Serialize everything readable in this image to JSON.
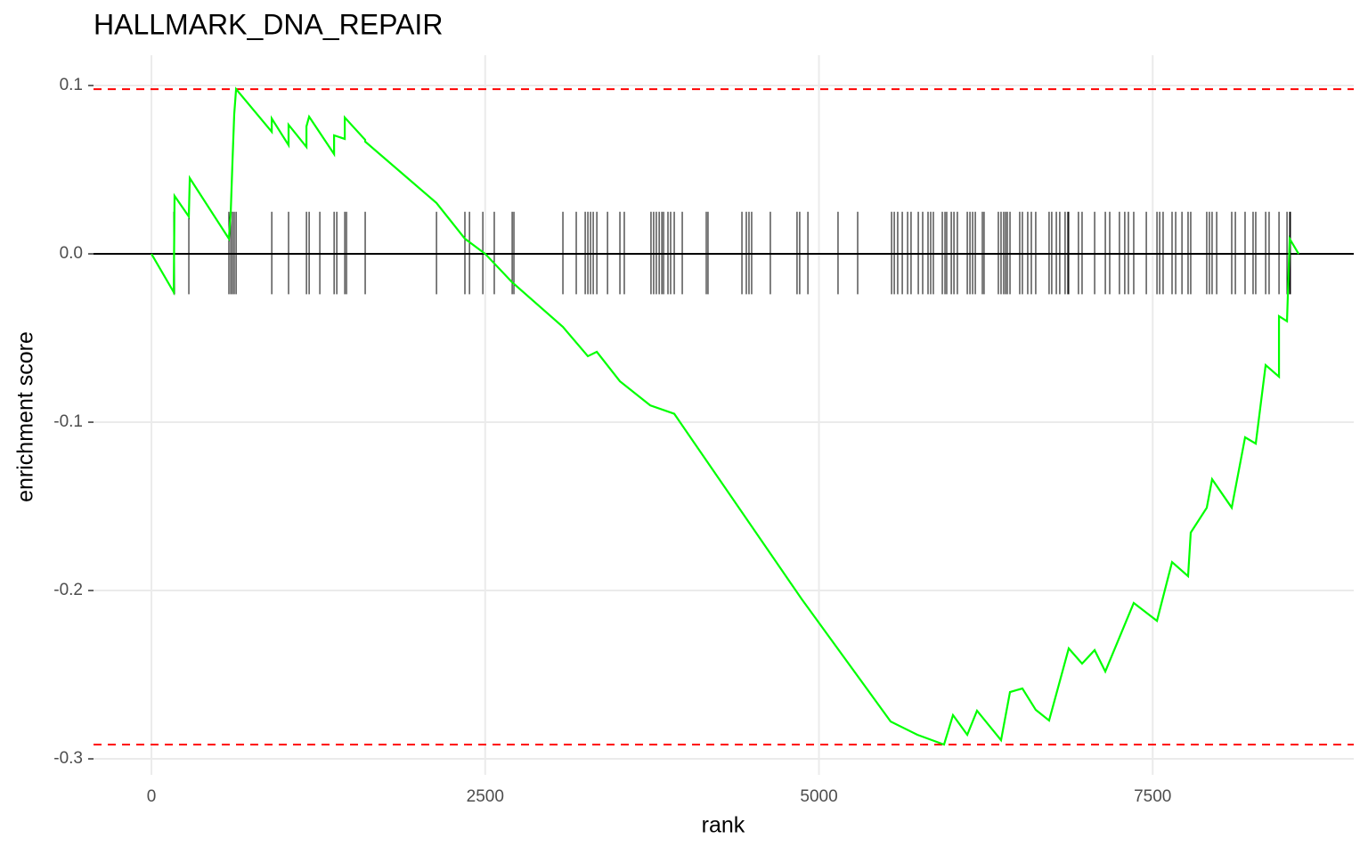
{
  "chart_data": {
    "type": "line",
    "title": "HALLMARK_DNA_REPAIR",
    "xlabel": "rank",
    "ylabel": "enrichment score",
    "x": [
      0,
      167,
      173,
      280,
      287,
      580,
      594,
      607,
      620,
      634,
      901,
      901,
      1027,
      1027,
      1161,
      1161,
      1181,
      1368,
      1368,
      1448,
      1448,
      1601,
      1601,
      2135,
      2348,
      2500,
      2702,
      3082,
      3269,
      3336,
      3509,
      3736,
      3916,
      4870,
      5537,
      5737,
      5937,
      6004,
      6111,
      6184,
      6364,
      6431,
      6524,
      6624,
      6724,
      6871,
      6971,
      7065,
      7145,
      7358,
      7532,
      7645,
      7765,
      7785,
      7905,
      7945,
      8092,
      8192,
      8272,
      8346,
      8446,
      8446,
      8506,
      8526,
      8593
    ],
    "values": [
      0,
      -0.0228,
      0.0344,
      0.0222,
      0.045,
      0.009,
      0.025,
      0.055,
      0.083,
      0.0979,
      0.0725,
      0.0804,
      0.0646,
      0.0767,
      0.0635,
      0.0757,
      0.0815,
      0.0593,
      0.0704,
      0.0683,
      0.081,
      0.0677,
      0.0667,
      0.0302,
      0.009,
      0,
      -0.0169,
      -0.0434,
      -0.0608,
      -0.0582,
      -0.0757,
      -0.09,
      -0.095,
      -0.205,
      -0.2778,
      -0.2857,
      -0.2915,
      -0.274,
      -0.2857,
      -0.2714,
      -0.2889,
      -0.2603,
      -0.2582,
      -0.2709,
      -0.2772,
      -0.2344,
      -0.2434,
      -0.2354,
      -0.2481,
      -0.2074,
      -0.218,
      -0.1831,
      -0.1915,
      -0.1656,
      -0.1508,
      -0.1339,
      -0.1508,
      -0.109,
      -0.1127,
      -0.0661,
      -0.073,
      -0.037,
      -0.04,
      0.009,
      0
    ],
    "color": "#00ff00",
    "hits": [
      167,
      173,
      280,
      580,
      594,
      607,
      620,
      634,
      901,
      1027,
      1161,
      1181,
      1261,
      1368,
      1388,
      1448,
      1461,
      1601,
      2135,
      2348,
      2382,
      2482,
      2568,
      2702,
      2715,
      3082,
      3182,
      3249,
      3269,
      3289,
      3309,
      3336,
      3416,
      3509,
      3542,
      3742,
      3762,
      3782,
      3803,
      3823,
      3836,
      3869,
      3889,
      3916,
      3976,
      4156,
      4169,
      4423,
      4456,
      4476,
      4496,
      4636,
      4836,
      4856,
      4917,
      5143,
      5290,
      5544,
      5564,
      5590,
      5624,
      5664,
      5690,
      5744,
      5777,
      5817,
      5837,
      5857,
      5924,
      5944,
      5957,
      5991,
      6011,
      6037,
      6111,
      6131,
      6151,
      6171,
      6224,
      6237,
      6344,
      6364,
      6384,
      6398,
      6411,
      6431,
      6504,
      6524,
      6564,
      6591,
      6624,
      6724,
      6744,
      6778,
      6804,
      6844,
      6864,
      6871,
      6944,
      6971,
      7065,
      7145,
      7178,
      7251,
      7291,
      7318,
      7358,
      7452,
      7532,
      7552,
      7578,
      7645,
      7672,
      7719,
      7765,
      7785,
      7905,
      7925,
      7945,
      7979,
      8092,
      8119,
      8192,
      8252,
      8272,
      8346,
      8372,
      8446,
      8506,
      8526,
      8532
    ],
    "hit_range": [
      -0.024,
      0.025
    ],
    "hline": 0,
    "thresholds": [
      0.0978,
      -0.2915
    ],
    "threshold_color": "#ff0000",
    "xlim": [
      -434,
      9006
    ],
    "ylim": [
      -0.3095,
      0.118
    ],
    "xticks": [
      0,
      2500,
      5000,
      7500
    ],
    "yticks": [
      {
        "value": 0.1,
        "label": "0.1"
      },
      {
        "value": 0,
        "label": "0.0"
      },
      {
        "value": -0.1,
        "label": "-0.1"
      },
      {
        "value": -0.2,
        "label": "-0.2"
      },
      {
        "value": -0.3,
        "label": "-0.3"
      }
    ],
    "grid": true
  }
}
